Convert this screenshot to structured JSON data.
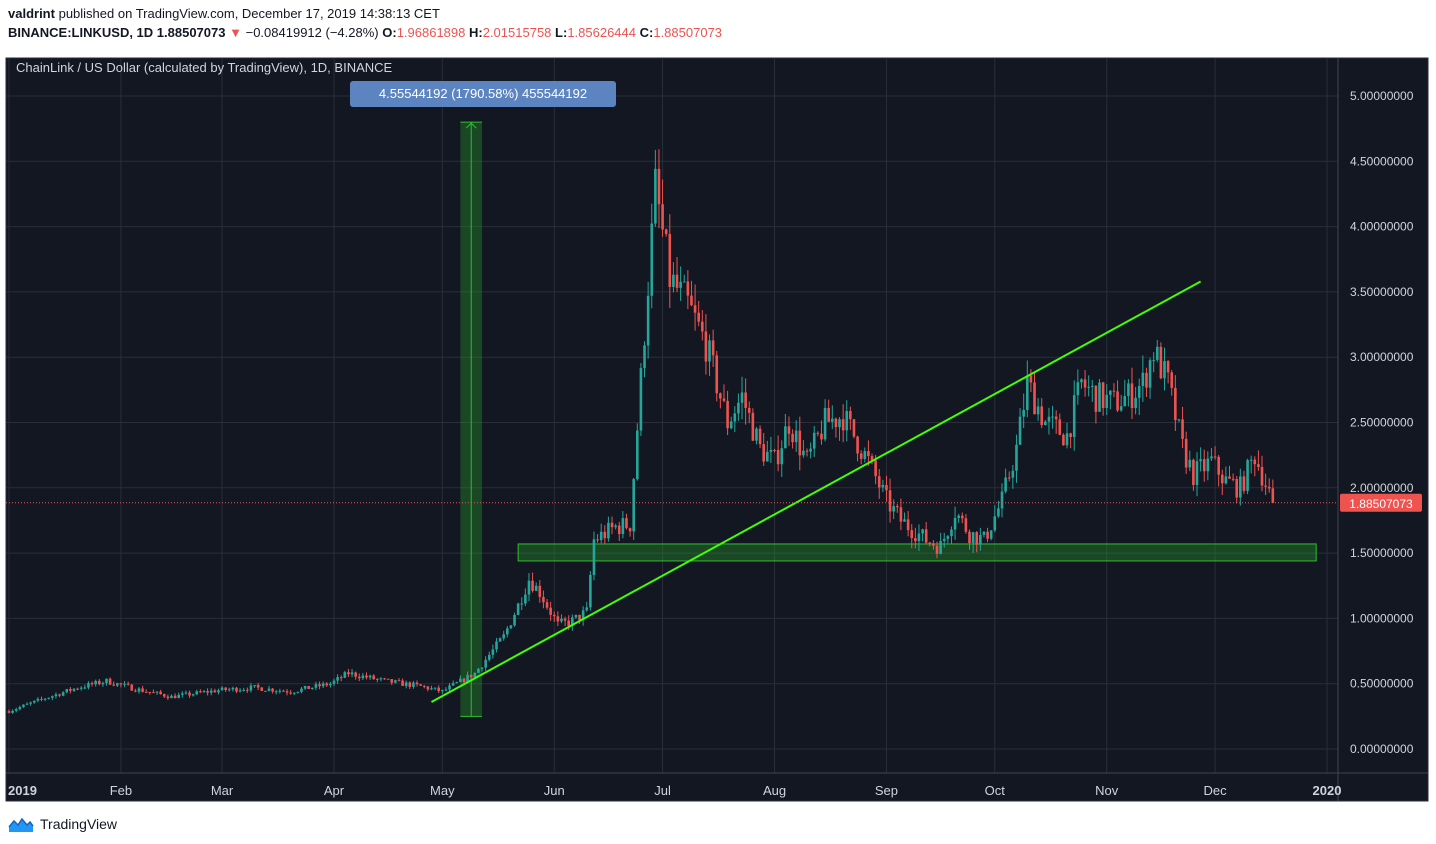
{
  "header": {
    "publisher": "valdrint",
    "published_text": "published on TradingView.com, December 17, 2019 14:38:13 CET",
    "symbol": "BINANCE:LINKUSD, 1D",
    "last": "1.88507073",
    "arrow": "▼",
    "change": "−0.08419912 (−4.28%)",
    "o_label": "O:",
    "o_value": "1.96861898",
    "h_label": "H:",
    "h_value": "2.01515758",
    "l_label": "L:",
    "l_value": "1.85626444",
    "c_label": "C:",
    "c_value": "1.88507073"
  },
  "colors": {
    "up": "#26a69a",
    "down": "#ef5350",
    "background": "#131722",
    "grid": "#2a2e39",
    "trendline": "#44ff00",
    "zone": "#1f7a1f",
    "measure_tooltip": "#5b84c0"
  },
  "chart_data": {
    "type": "candlestick",
    "title": "ChainLink / US Dollar (calculated by TradingView), 1D, BINANCE",
    "x_tick_labels": [
      "2019",
      "Feb",
      "Mar",
      "Apr",
      "May",
      "Jun",
      "Jul",
      "Aug",
      "Sep",
      "Oct",
      "Nov",
      "Dec",
      "2020"
    ],
    "x_tick_dates": [
      "2019-01-01",
      "2019-02-01",
      "2019-03-01",
      "2019-04-01",
      "2019-05-01",
      "2019-06-01",
      "2019-07-01",
      "2019-08-01",
      "2019-09-01",
      "2019-10-01",
      "2019-11-01",
      "2019-12-01",
      "2020-01-01"
    ],
    "y_tick_labels": [
      "0.00000000",
      "0.50000000",
      "1.00000000",
      "1.50000000",
      "2.00000000",
      "2.50000000",
      "3.00000000",
      "3.50000000",
      "4.00000000",
      "4.50000000",
      "5.00000000"
    ],
    "y_ticks": [
      0,
      0.5,
      1.0,
      1.5,
      2.0,
      2.5,
      3.0,
      3.5,
      4.0,
      4.5,
      5.0
    ],
    "ylim": [
      -0.1,
      5.3
    ],
    "xlim": [
      "2019-01-01",
      "2020-01-01"
    ],
    "last_price_label": "1.88507073",
    "last_price": 1.88507073,
    "price_path": [
      [
        "2019-01-01",
        0.29
      ],
      [
        "2019-01-10",
        0.38
      ],
      [
        "2019-01-20",
        0.47
      ],
      [
        "2019-01-28",
        0.52
      ],
      [
        "2019-02-05",
        0.46
      ],
      [
        "2019-02-15",
        0.4
      ],
      [
        "2019-02-28",
        0.45
      ],
      [
        "2019-03-10",
        0.47
      ],
      [
        "2019-03-20",
        0.44
      ],
      [
        "2019-03-31",
        0.5
      ],
      [
        "2019-04-05",
        0.58
      ],
      [
        "2019-04-15",
        0.52
      ],
      [
        "2019-04-25",
        0.48
      ],
      [
        "2019-05-01",
        0.44
      ],
      [
        "2019-05-10",
        0.58
      ],
      [
        "2019-05-18",
        0.86
      ],
      [
        "2019-05-22",
        1.1
      ],
      [
        "2019-05-25",
        1.3
      ],
      [
        "2019-05-28",
        1.2
      ],
      [
        "2019-06-02",
        0.95
      ],
      [
        "2019-06-06",
        0.98
      ],
      [
        "2019-06-10",
        1.05
      ],
      [
        "2019-06-12",
        1.6
      ],
      [
        "2019-06-18",
        1.7
      ],
      [
        "2019-06-22",
        1.72
      ],
      [
        "2019-06-26",
        3.2
      ],
      [
        "2019-06-29",
        4.3
      ],
      [
        "2019-07-03",
        3.6
      ],
      [
        "2019-07-08",
        3.4
      ],
      [
        "2019-07-13",
        3.1
      ],
      [
        "2019-07-19",
        2.5
      ],
      [
        "2019-07-23",
        2.7
      ],
      [
        "2019-07-28",
        2.3
      ],
      [
        "2019-08-01",
        2.2
      ],
      [
        "2019-08-05",
        2.5
      ],
      [
        "2019-08-10",
        2.2
      ],
      [
        "2019-08-15",
        2.5
      ],
      [
        "2019-08-20",
        2.55
      ],
      [
        "2019-08-23",
        2.4
      ],
      [
        "2019-08-27",
        2.2
      ],
      [
        "2019-09-01",
        1.9
      ],
      [
        "2019-09-05",
        1.75
      ],
      [
        "2019-09-12",
        1.6
      ],
      [
        "2019-09-16",
        1.55
      ],
      [
        "2019-09-20",
        1.82
      ],
      [
        "2019-09-24",
        1.65
      ],
      [
        "2019-09-28",
        1.6
      ],
      [
        "2019-10-03",
        1.9
      ],
      [
        "2019-10-07",
        2.3
      ],
      [
        "2019-10-10",
        2.8
      ],
      [
        "2019-10-15",
        2.5
      ],
      [
        "2019-10-21",
        2.4
      ],
      [
        "2019-10-25",
        2.8
      ],
      [
        "2019-10-29",
        2.7
      ],
      [
        "2019-11-03",
        2.65
      ],
      [
        "2019-11-07",
        2.7
      ],
      [
        "2019-11-11",
        2.8
      ],
      [
        "2019-11-14",
        3.05
      ],
      [
        "2019-11-18",
        2.8
      ],
      [
        "2019-11-22",
        2.3
      ],
      [
        "2019-11-25",
        2.1
      ],
      [
        "2019-11-30",
        2.2
      ],
      [
        "2019-12-04",
        2.05
      ],
      [
        "2019-12-08",
        2.0
      ],
      [
        "2019-12-12",
        2.25
      ],
      [
        "2019-12-17",
        1.885
      ]
    ],
    "annotations": {
      "measure_label": "4.55544192 (1790.58%) 455544192",
      "measure": {
        "from_date": "2019-05-06",
        "to_date": "2019-05-12",
        "low": 0.25,
        "high": 4.8
      },
      "support_zone": {
        "from_date": "2019-05-22",
        "to_date": "2019-12-29",
        "low": 1.44,
        "high": 1.57
      },
      "trendline": {
        "from": [
          "2019-04-28",
          0.36
        ],
        "to": [
          "2019-11-27",
          3.58
        ]
      }
    }
  },
  "footer": {
    "brand": "TradingView",
    "logo_icon": "tradingview-logo-icon"
  }
}
